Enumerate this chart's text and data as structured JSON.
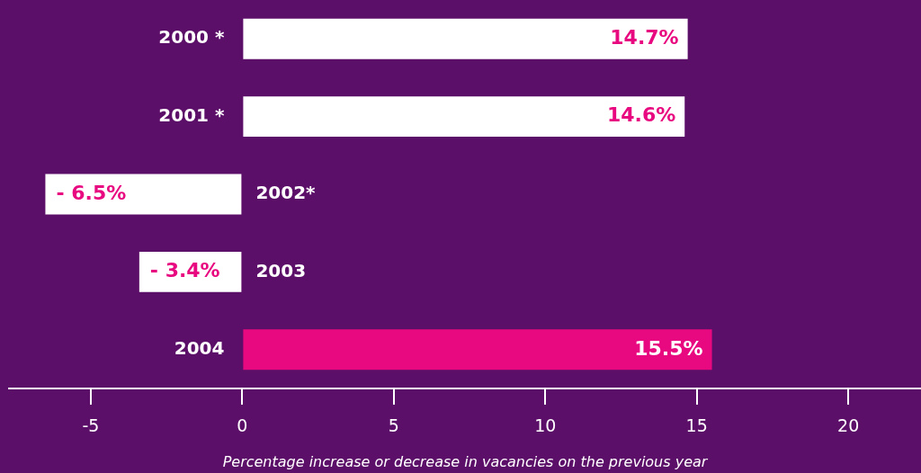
{
  "chart_data": {
    "type": "bar",
    "orientation": "horizontal",
    "categories": [
      "2000 *",
      "2001 *",
      "2002*",
      "2003",
      "2004"
    ],
    "values": [
      14.7,
      14.6,
      -6.5,
      -3.4,
      15.5
    ],
    "colors": [
      "#ffffff",
      "#ffffff",
      "#ffffff",
      "#ffffff",
      "#e8087f"
    ],
    "value_labels": [
      "14.7%",
      "14.6%",
      "- 6.5%",
      "- 3.4%",
      "15.5%"
    ],
    "xlim": [
      -7.7,
      22.4
    ],
    "xticks": [
      -5,
      0,
      5,
      10,
      15,
      20
    ],
    "xlabel": "Percentage increase or decrease in vacancies on the previous year",
    "grid": false,
    "legend": false
  }
}
